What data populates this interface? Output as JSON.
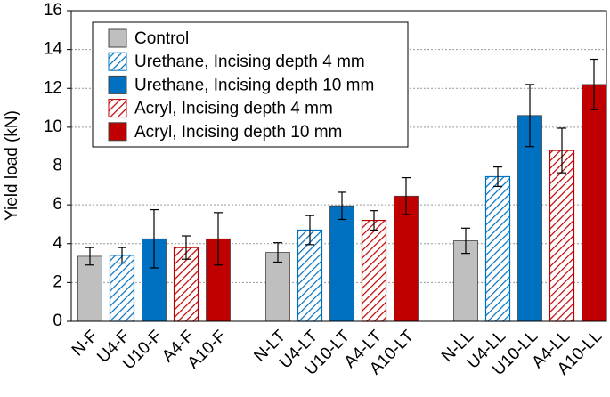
{
  "chart_data": {
    "type": "bar",
    "ylabel": "Yield load (kN)",
    "ylim": [
      0,
      16
    ],
    "yticks": [
      0,
      2,
      4,
      6,
      8,
      10,
      12,
      14,
      16
    ],
    "grid": true,
    "legend": "upper left",
    "series": [
      {
        "name": "Control",
        "color": "#bfbfbf",
        "hatch": false,
        "labels": [
          "N-F",
          "N-LT",
          "N-LL"
        ],
        "values": [
          3.35,
          3.55,
          4.15
        ],
        "errors": [
          0.45,
          0.5,
          0.65
        ]
      },
      {
        "name": "Urethane, Incising depth 4 mm",
        "color": "#0070c0",
        "hatch": true,
        "labels": [
          "U4-F",
          "U4-LT",
          "U4-LL"
        ],
        "values": [
          3.4,
          4.7,
          7.45
        ],
        "errors": [
          0.4,
          0.75,
          0.5
        ]
      },
      {
        "name": "Urethane, Incising depth 10 mm",
        "color": "#0070c0",
        "hatch": false,
        "labels": [
          "U10-F",
          "U10-LT",
          "U10-LL"
        ],
        "values": [
          4.25,
          5.95,
          10.6
        ],
        "errors": [
          1.5,
          0.7,
          1.6
        ]
      },
      {
        "name": "Acryl, Incising depth 4 mm",
        "color": "#c00000",
        "hatch": true,
        "labels": [
          "A4-F",
          "A4-LT",
          "A4-LL"
        ],
        "values": [
          3.8,
          5.2,
          8.8
        ],
        "errors": [
          0.6,
          0.5,
          1.15
        ]
      },
      {
        "name": "Acryl, Incising depth 10 mm",
        "color": "#c00000",
        "hatch": false,
        "labels": [
          "A10-F",
          "A10-LT",
          "A10-LL"
        ],
        "values": [
          4.25,
          6.45,
          12.2
        ],
        "errors": [
          1.35,
          0.95,
          1.3
        ]
      }
    ]
  }
}
